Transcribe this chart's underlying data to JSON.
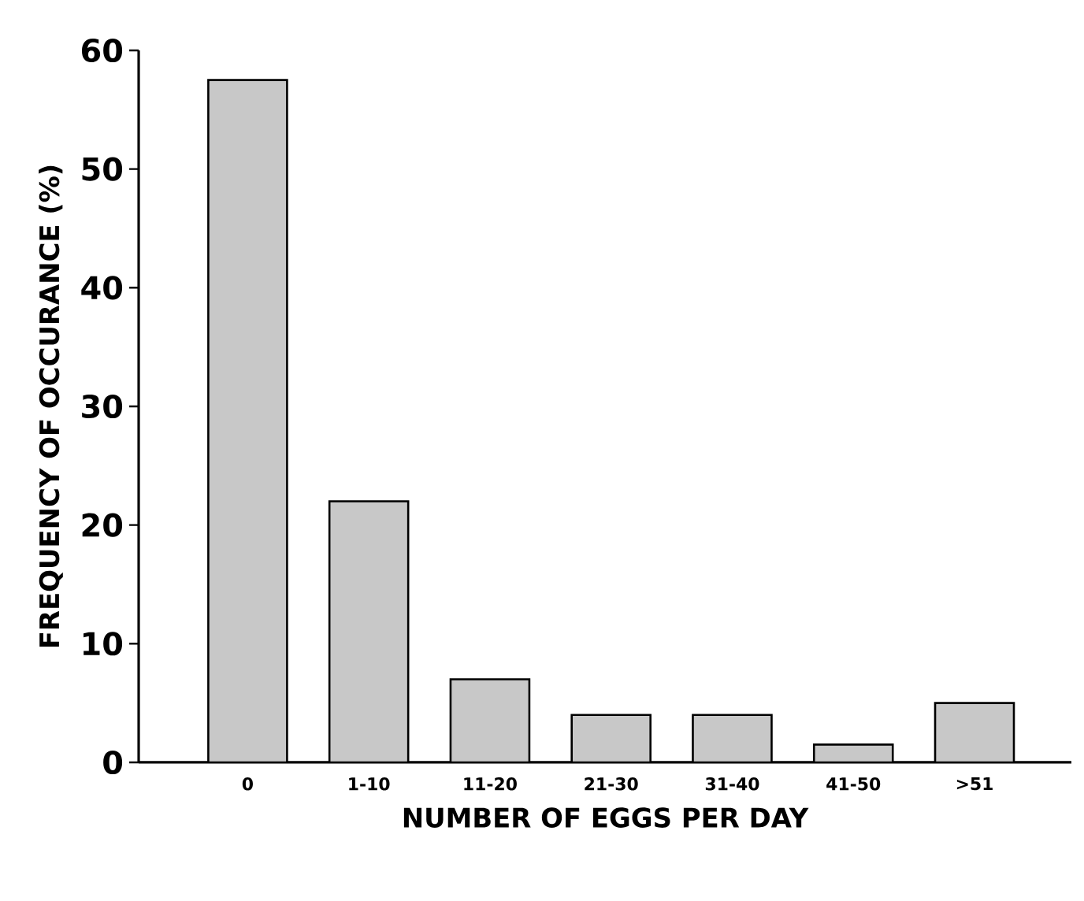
{
  "chart_data": {
    "type": "bar",
    "xlabel": "NUMBER  OF  EGGS  PER  DAY",
    "ylabel": "FREQUENCY  OF  OCCURANCE (%)",
    "categories": [
      "0",
      "1-10",
      "11-20",
      "21-30",
      "31-40",
      "41-50",
      ">51"
    ],
    "values": [
      57.5,
      22,
      7,
      4,
      4,
      1.5,
      5
    ],
    "color": "#c8c8c8",
    "ylim": [
      0,
      60
    ],
    "yticks": [
      0,
      10,
      20,
      30,
      40,
      50,
      60
    ],
    "grid": false
  }
}
